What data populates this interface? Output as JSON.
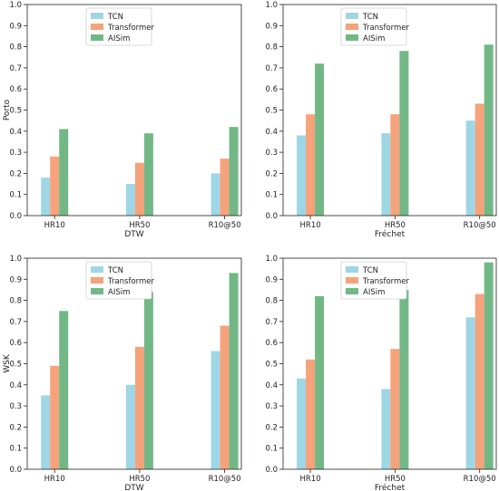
{
  "colors": {
    "TCN": "#9fd6e6",
    "Transformer": "#f6a27a",
    "AISim": "#72b886"
  },
  "chart_data": [
    {
      "type": "bar",
      "categories": [
        "HR10",
        "HR50",
        "R10@50"
      ],
      "xlabel": "DTW",
      "ylabel": "Porto",
      "ylim": [
        0,
        1.0
      ],
      "yticks": [
        "0.0",
        "0.1",
        "0.2",
        "0.3",
        "0.4",
        "0.5",
        "0.6",
        "0.7",
        "0.8",
        "0.9",
        "1.0"
      ],
      "legend": "top-right",
      "series": [
        {
          "name": "TCN",
          "values": [
            0.18,
            0.15,
            0.2
          ]
        },
        {
          "name": "Transformer",
          "values": [
            0.28,
            0.25,
            0.27
          ]
        },
        {
          "name": "AISim",
          "values": [
            0.41,
            0.39,
            0.42
          ]
        }
      ]
    },
    {
      "type": "bar",
      "categories": [
        "HR10",
        "HR50",
        "R10@50"
      ],
      "xlabel": "Fréchet",
      "ylabel": "",
      "ylim": [
        0,
        1.0
      ],
      "yticks": [
        "0.0",
        "0.1",
        "0.2",
        "0.3",
        "0.4",
        "0.5",
        "0.6",
        "0.7",
        "0.8",
        "0.9",
        "1.0"
      ],
      "legend": "top-right",
      "series": [
        {
          "name": "TCN",
          "values": [
            0.38,
            0.39,
            0.45
          ]
        },
        {
          "name": "Transformer",
          "values": [
            0.48,
            0.48,
            0.53
          ]
        },
        {
          "name": "AISim",
          "values": [
            0.72,
            0.78,
            0.81
          ]
        }
      ]
    },
    {
      "type": "bar",
      "categories": [
        "HR10",
        "HR50",
        "R10@50"
      ],
      "xlabel": "DTW",
      "ylabel": "WSK",
      "ylim": [
        0,
        1.0
      ],
      "yticks": [
        "0.0",
        "0.1",
        "0.2",
        "0.3",
        "0.4",
        "0.5",
        "0.6",
        "0.7",
        "0.8",
        "0.9",
        "1.0"
      ],
      "legend": "top-right",
      "series": [
        {
          "name": "TCN",
          "values": [
            0.35,
            0.4,
            0.56
          ]
        },
        {
          "name": "Transformer",
          "values": [
            0.49,
            0.58,
            0.68
          ]
        },
        {
          "name": "AISim",
          "values": [
            0.75,
            0.84,
            0.93
          ]
        }
      ]
    },
    {
      "type": "bar",
      "categories": [
        "HR10",
        "HR50",
        "R10@50"
      ],
      "xlabel": "Fréchet",
      "ylabel": "",
      "ylim": [
        0,
        1.0
      ],
      "yticks": [
        "0.0",
        "0.1",
        "0.2",
        "0.3",
        "0.4",
        "0.5",
        "0.6",
        "0.7",
        "0.8",
        "0.9",
        "1.0"
      ],
      "legend": "top-right",
      "series": [
        {
          "name": "TCN",
          "values": [
            0.43,
            0.38,
            0.72
          ]
        },
        {
          "name": "Transformer",
          "values": [
            0.52,
            0.57,
            0.83
          ]
        },
        {
          "name": "AISim",
          "values": [
            0.82,
            0.85,
            0.98
          ]
        }
      ]
    }
  ]
}
